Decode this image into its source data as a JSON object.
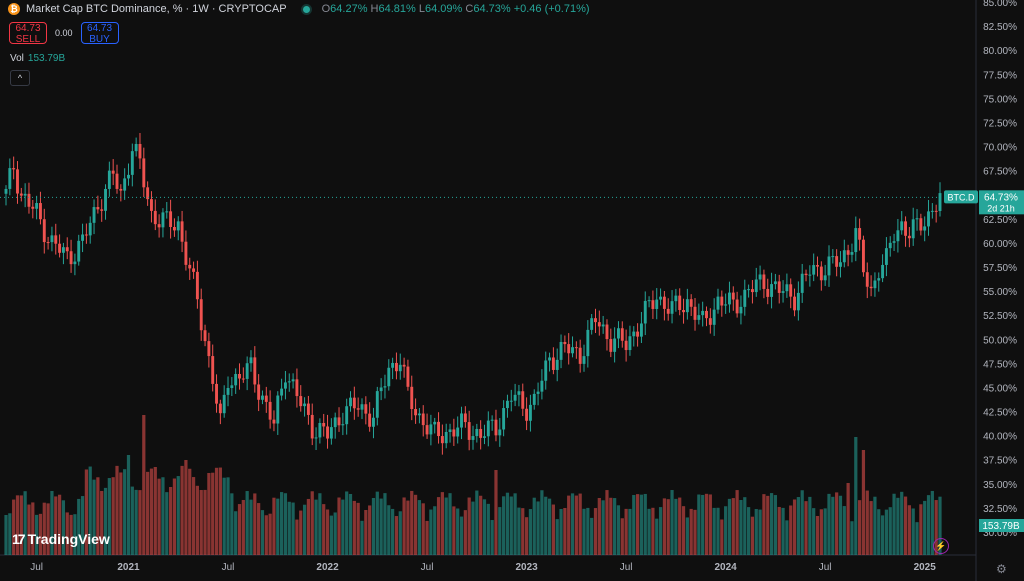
{
  "header": {
    "symbol_icon": "bitcoin-icon",
    "title": "Market Cap BTC Dominance, % · 1W · CRYPTOCAP",
    "o_label": "O",
    "o_value": "64.27%",
    "h_label": "H",
    "h_value": "64.81%",
    "l_label": "L",
    "l_value": "64.09%",
    "c_label": "C",
    "c_value": "64.73%",
    "change": "+0.46 (+0.71%)"
  },
  "trade": {
    "sell_price": "64.73",
    "sell_label": "SELL",
    "spread": "0.00",
    "buy_price": "64.73",
    "buy_label": "BUY"
  },
  "volume": {
    "label": "Vol",
    "value": "153.79B"
  },
  "branding": {
    "logo_text": "TradingView"
  },
  "colors": {
    "up": "#26a69a",
    "down": "#ef5350",
    "background": "#0f0f0f"
  },
  "chart_data": {
    "type": "candlestick",
    "symbol": "BTC.D",
    "interval": "1W",
    "y_ticks": [
      "85.00%",
      "82.50%",
      "80.00%",
      "77.50%",
      "75.00%",
      "72.50%",
      "70.00%",
      "67.50%",
      "65.00%",
      "62.50%",
      "60.00%",
      "57.50%",
      "55.00%",
      "52.50%",
      "50.00%",
      "47.50%",
      "45.00%",
      "42.50%",
      "40.00%",
      "37.50%",
      "35.00%",
      "32.50%",
      "30.00%"
    ],
    "ylim": [
      30,
      85
    ],
    "x_ticks": [
      "Jul",
      "2021",
      "Jul",
      "2022",
      "Jul",
      "2023",
      "Jul",
      "2024",
      "Jul",
      "2025"
    ],
    "last_price_label": "BTC.D",
    "last_price": "64.73%",
    "countdown": "2d 21h",
    "volume_last": "153.79B",
    "anchors": [
      [
        0,
        65
      ],
      [
        2,
        68
      ],
      [
        4,
        65
      ],
      [
        8,
        63
      ],
      [
        12,
        60
      ],
      [
        16,
        58.5
      ],
      [
        20,
        60
      ],
      [
        24,
        64
      ],
      [
        28,
        67
      ],
      [
        30,
        65
      ],
      [
        33,
        70
      ],
      [
        35,
        68
      ],
      [
        38,
        63
      ],
      [
        42,
        62
      ],
      [
        45,
        62
      ],
      [
        48,
        57
      ],
      [
        50,
        54
      ],
      [
        52,
        50
      ],
      [
        54,
        46
      ],
      [
        56,
        41
      ],
      [
        58,
        46
      ],
      [
        61,
        46
      ],
      [
        64,
        47
      ],
      [
        67,
        44
      ],
      [
        70,
        41
      ],
      [
        73,
        47
      ],
      [
        76,
        44
      ],
      [
        80,
        41
      ],
      [
        84,
        40
      ],
      [
        88,
        42.5
      ],
      [
        92,
        43
      ],
      [
        96,
        42
      ],
      [
        100,
        47
      ],
      [
        103,
        48
      ],
      [
        105,
        44
      ],
      [
        108,
        42
      ],
      [
        112,
        40
      ],
      [
        116,
        40.5
      ],
      [
        120,
        41
      ],
      [
        124,
        40
      ],
      [
        128,
        41
      ],
      [
        132,
        44
      ],
      [
        136,
        43
      ],
      [
        138,
        43.5
      ],
      [
        142,
        48
      ],
      [
        146,
        49
      ],
      [
        150,
        48.5
      ],
      [
        154,
        52
      ],
      [
        158,
        50
      ],
      [
        162,
        49.5
      ],
      [
        166,
        52
      ],
      [
        170,
        54.5
      ],
      [
        174,
        53
      ],
      [
        178,
        54
      ],
      [
        182,
        51.5
      ],
      [
        186,
        54
      ],
      [
        190,
        53.5
      ],
      [
        194,
        55
      ],
      [
        198,
        56
      ],
      [
        202,
        55
      ],
      [
        206,
        54.5
      ],
      [
        210,
        57
      ],
      [
        214,
        57.5
      ],
      [
        218,
        58
      ],
      [
        222,
        61
      ],
      [
        224,
        57
      ],
      [
        226,
        55
      ],
      [
        228,
        57.5
      ],
      [
        230,
        58
      ],
      [
        232,
        61
      ],
      [
        234,
        62
      ],
      [
        236,
        61
      ],
      [
        238,
        61.5
      ],
      [
        241,
        63
      ],
      [
        244,
        64.5
      ]
    ],
    "x_tick_index": [
      8,
      32,
      58,
      84,
      110,
      136,
      162,
      188,
      214,
      240
    ]
  }
}
